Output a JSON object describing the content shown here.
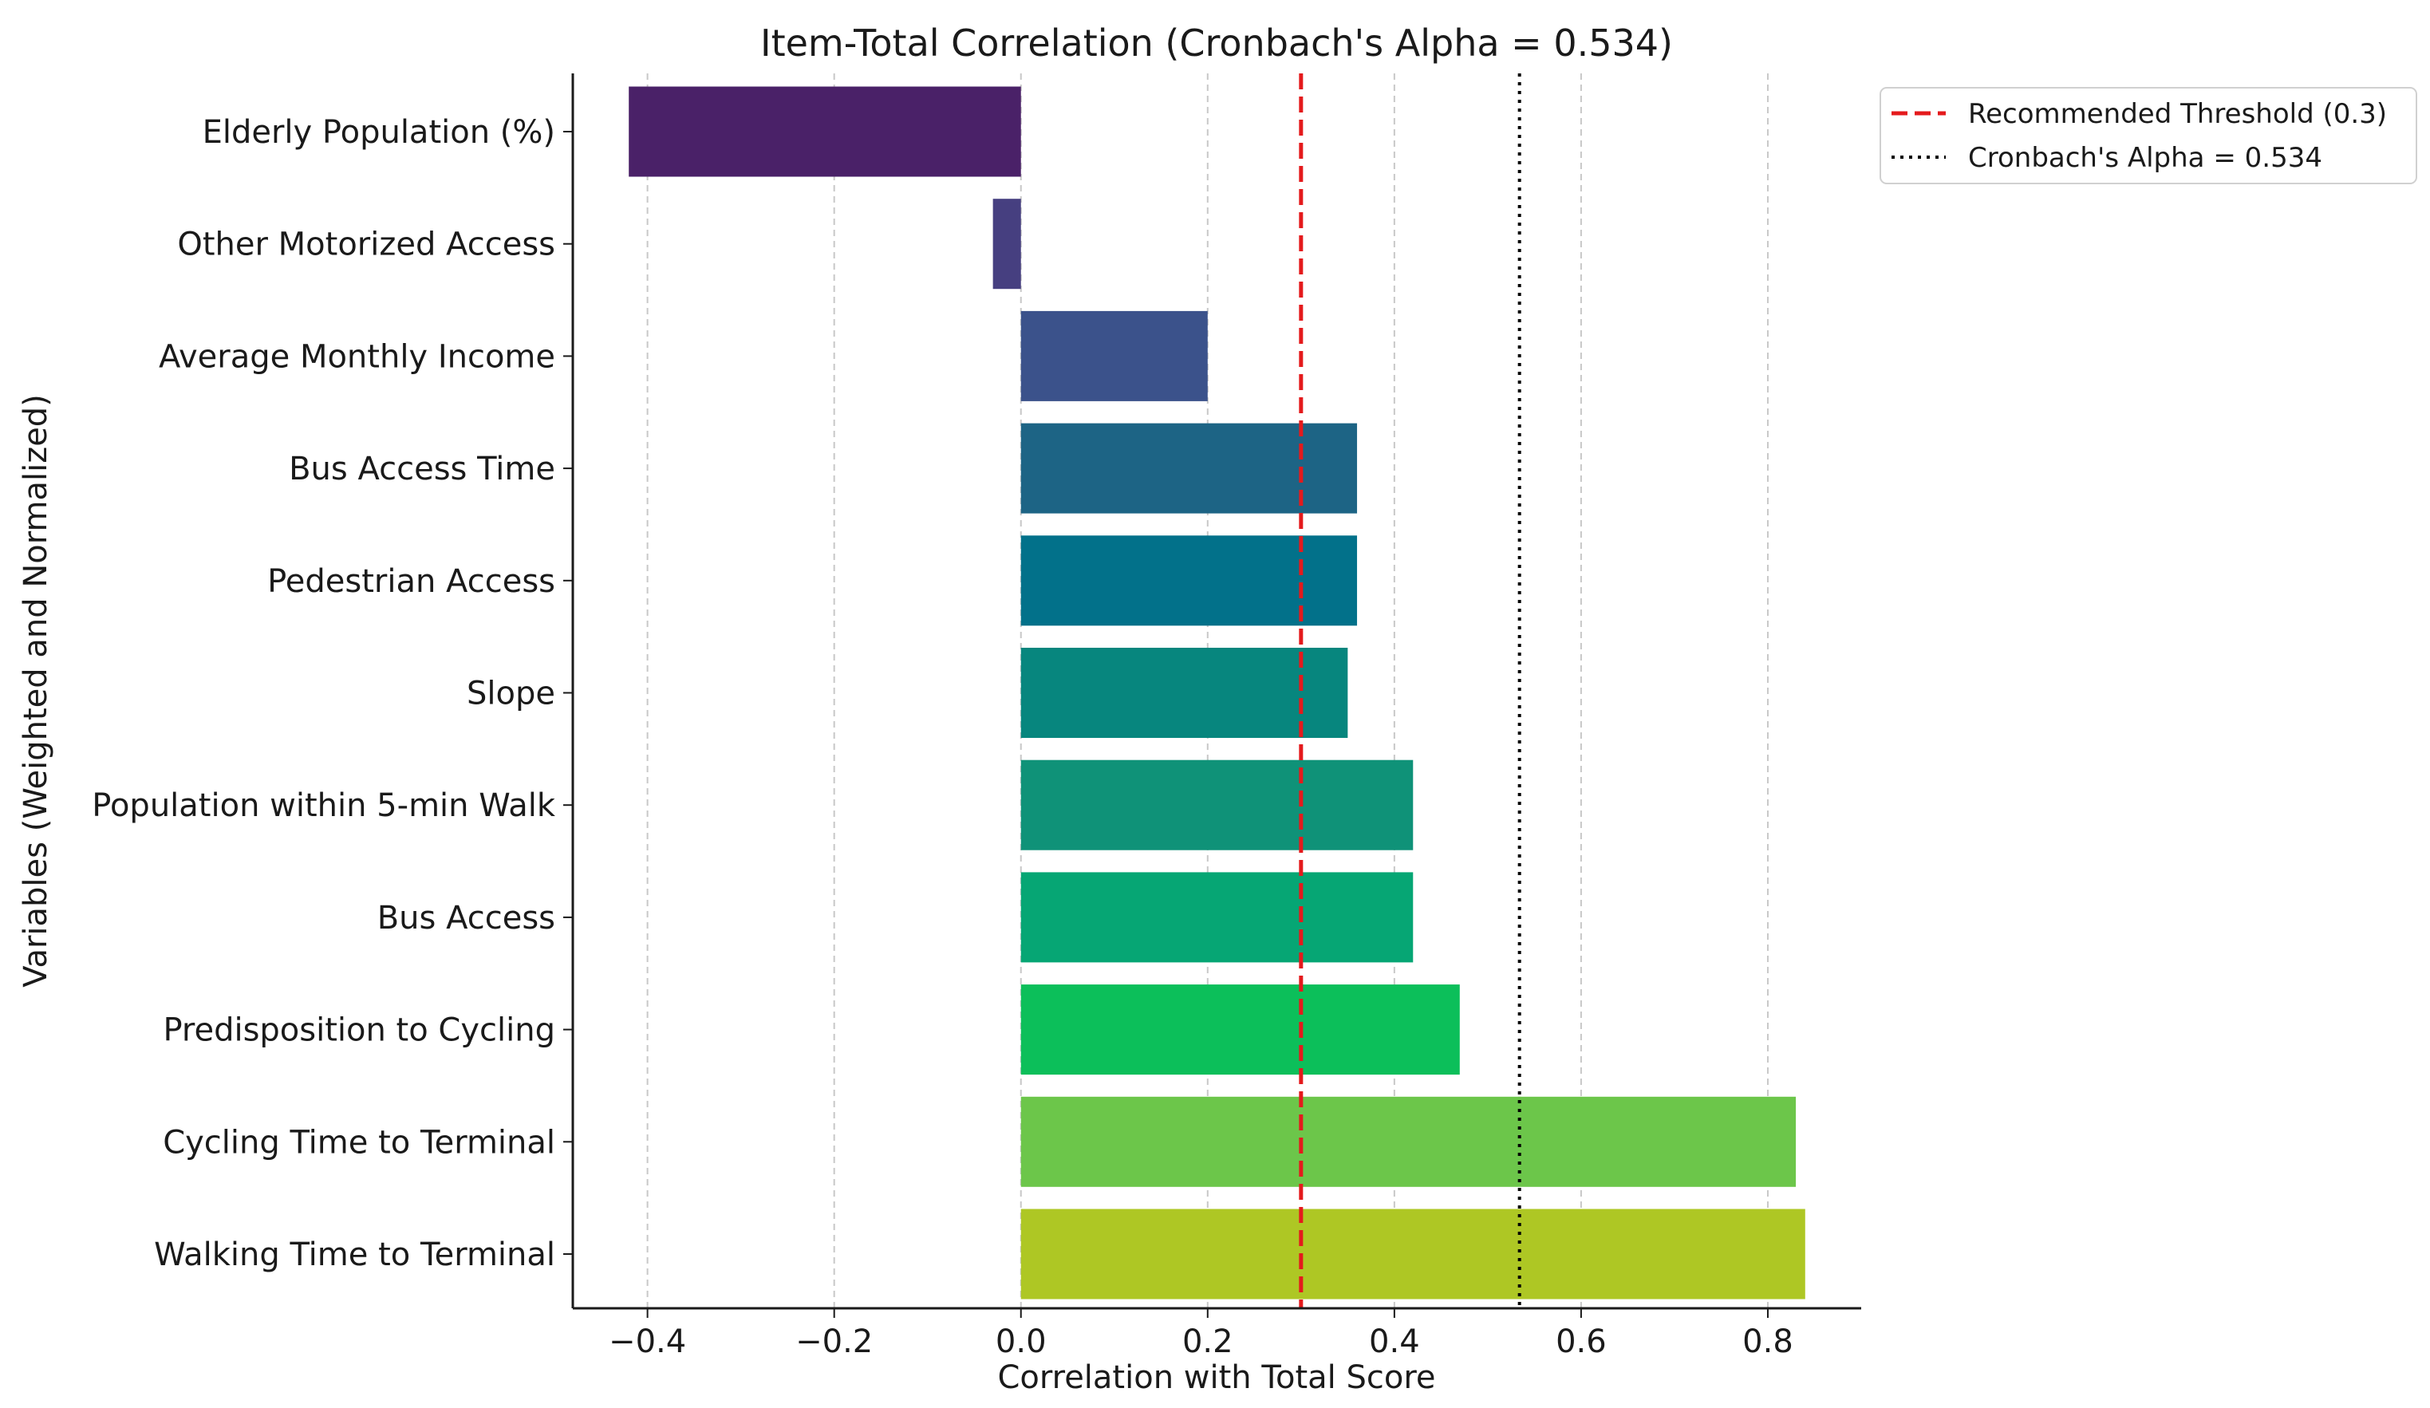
{
  "chart_data": {
    "type": "bar",
    "orientation": "horizontal",
    "title": "Item-Total Correlation (Cronbach's Alpha = 0.534)",
    "xlabel": "Correlation with Total Score",
    "ylabel": "Variables (Weighted and Normalized)",
    "xlim": [
      -0.48,
      0.9
    ],
    "xticks": [
      -0.4,
      -0.2,
      0.0,
      0.2,
      0.4,
      0.6,
      0.8
    ],
    "xtick_labels": [
      "−0.4",
      "−0.2",
      "0.0",
      "0.2",
      "0.4",
      "0.6",
      "0.8"
    ],
    "grid": "vertical-dashed",
    "categories": [
      "Elderly Population (%)",
      "Other Motorized Access",
      "Average Monthly Income",
      "Bus Access Time",
      "Pedestrian Access",
      "Slope",
      "Population within 5-min Walk",
      "Bus Access",
      "Predisposition to Cycling",
      "Cycling Time to Terminal",
      "Walking Time to Terminal"
    ],
    "values": [
      -0.42,
      -0.03,
      0.2,
      0.36,
      0.36,
      0.35,
      0.42,
      0.42,
      0.47,
      0.83,
      0.84
    ],
    "colors": [
      "#4a2168",
      "#463f80",
      "#3b528b",
      "#1d6485",
      "#02718a",
      "#07867e",
      "#0f9278",
      "#06a674",
      "#0cbf5a",
      "#6cc64a",
      "#aec724"
    ],
    "reference_lines": [
      {
        "name": "Recommended Threshold (0.3)",
        "value": 0.3,
        "style": "dashed",
        "color": "#e41a1c"
      },
      {
        "name": "Cronbach's Alpha = 0.534",
        "value": 0.534,
        "style": "dotted",
        "color": "#000000"
      }
    ],
    "legend_position": "top-right outside"
  }
}
